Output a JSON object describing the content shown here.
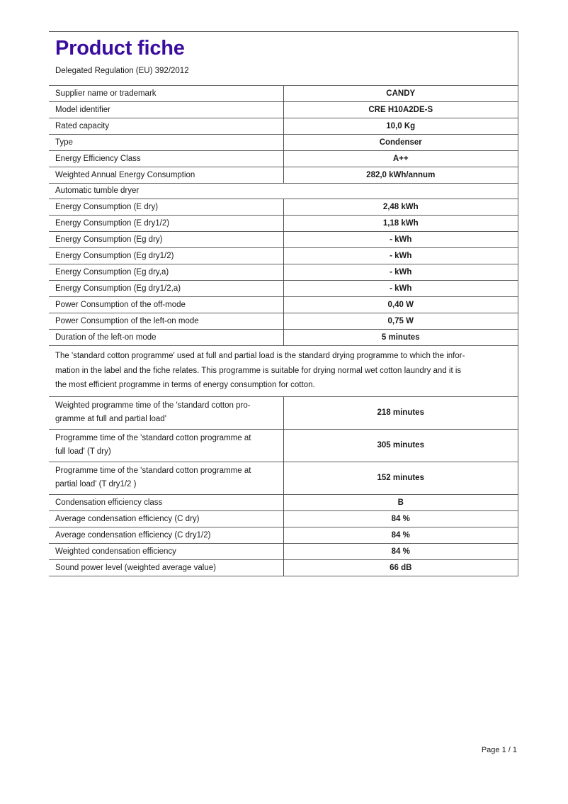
{
  "page": {
    "title": "Product fiche",
    "regulation": "Delegated Regulation (EU) 392/2012",
    "footer": "Page 1 / 1",
    "accent_color": "#3b0d9e",
    "line_color": "#5f5f5f"
  },
  "table": {
    "rows": [
      {
        "type": "simple",
        "label": "Supplier name or trademark",
        "value": "CANDY"
      },
      {
        "type": "simple",
        "label": "Model identifier",
        "value": "CRE H10A2DE-S"
      },
      {
        "type": "simple",
        "label": "Rated capacity",
        "value": "10,0 Kg"
      },
      {
        "type": "simple",
        "label": "Type",
        "value": "Condenser"
      },
      {
        "type": "simple",
        "label": "Energy Efficiency Class",
        "value": "A++"
      },
      {
        "type": "simple",
        "label": "Weighted Annual Energy Consumption",
        "value": "282,0 kWh/annum"
      },
      {
        "type": "section",
        "label": "Automatic tumble dryer"
      },
      {
        "type": "simple",
        "label": "Energy Consumption (E dry)",
        "value": "2,48 kWh"
      },
      {
        "type": "simple",
        "label": "Energy Consumption (E dry1/2)",
        "value": "1,18 kWh"
      },
      {
        "type": "simple",
        "label": "Energy Consumption (Eg dry)",
        "value": "- kWh"
      },
      {
        "type": "simple",
        "label": "Energy Consumption (Eg dry1/2)",
        "value": "- kWh"
      },
      {
        "type": "simple",
        "label": "Energy Consumption (Eg dry,a)",
        "value": "- kWh"
      },
      {
        "type": "simple",
        "label": "Energy Consumption (Eg dry1/2,a)",
        "value": "- kWh"
      },
      {
        "type": "simple",
        "label": "Power Consumption of the off-mode",
        "value": "0,40 W"
      },
      {
        "type": "simple",
        "label": "Power Consumption of the left-on mode",
        "value": "0,75 W"
      },
      {
        "type": "simple",
        "label": "Duration of the left-on mode",
        "value": "5 minutes"
      },
      {
        "type": "note",
        "lines": [
          "The 'standard cotton programme' used at full and partial load is the standard drying programme to which the infor-",
          "mation in the label and the fiche relates. This programme is suitable for drying normal wet cotton laundry and it is",
          "the most efficient programme in terms of energy consumption for cotton."
        ]
      },
      {
        "type": "multiline",
        "label_lines": [
          "Weighted programme time of the 'standard cotton pro-",
          "gramme at full and partial load'"
        ],
        "value": "218 minutes"
      },
      {
        "type": "multiline",
        "label_lines": [
          "Programme time of the 'standard cotton programme at",
          "full load' (T dry)"
        ],
        "value": "305 minutes"
      },
      {
        "type": "multiline",
        "label_lines": [
          "Programme time of the 'standard cotton programme at",
          "partial load' (T dry1/2 )"
        ],
        "value": "152 minutes"
      },
      {
        "type": "simple",
        "label": "Condensation efficiency class",
        "value": "B"
      },
      {
        "type": "simple",
        "label": "Average condensation efficiency (C dry)",
        "value": "84 %"
      },
      {
        "type": "simple",
        "label": "Average condensation efficiency (C dry1/2)",
        "value": "84 %"
      },
      {
        "type": "simple",
        "label": "Weighted condensation efficiency",
        "value": "84 %"
      },
      {
        "type": "simple",
        "label": "Sound power level (weighted average value)",
        "value": "66 dB"
      }
    ]
  }
}
